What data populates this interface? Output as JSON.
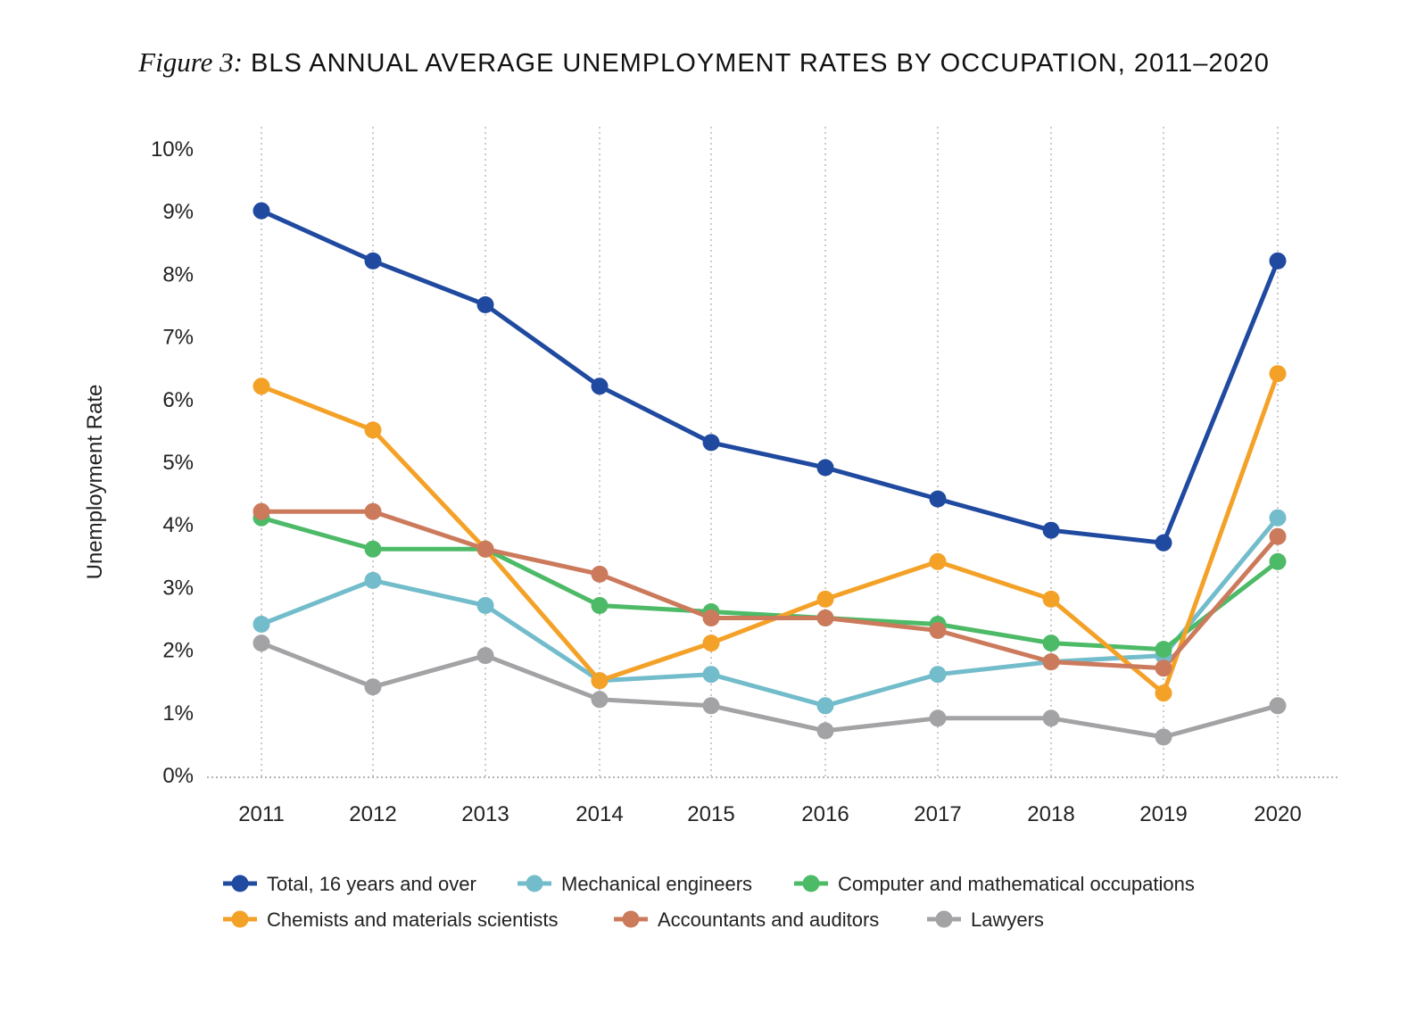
{
  "chart_data": {
    "type": "line",
    "figure_label": "Figure 3:",
    "title": "BLS ANNUAL AVERAGE UNEMPLOYMENT RATES BY OCCUPATION, 2011–2020",
    "xlabel": "",
    "ylabel": "Unemployment Rate",
    "x": [
      "2011",
      "2012",
      "2013",
      "2014",
      "2015",
      "2016",
      "2017",
      "2018",
      "2019",
      "2020"
    ],
    "ylim": [
      0,
      10
    ],
    "yticks": [
      "0%",
      "1%",
      "2%",
      "3%",
      "4%",
      "5%",
      "6%",
      "7%",
      "8%",
      "9%",
      "10%"
    ],
    "grid": "vertical dotted",
    "legend_position": "bottom",
    "series": [
      {
        "name": "Total, 16 years and over",
        "color": "#1f4aa0",
        "values": [
          9.0,
          8.2,
          7.5,
          6.2,
          5.3,
          4.9,
          4.4,
          3.9,
          3.7,
          8.2
        ]
      },
      {
        "name": "Mechanical engineers",
        "color": "#72bccb",
        "values": [
          2.4,
          3.1,
          2.7,
          1.5,
          1.6,
          1.1,
          1.6,
          1.8,
          1.9,
          4.1
        ]
      },
      {
        "name": "Computer and mathematical occupations",
        "color": "#4dba67",
        "values": [
          4.1,
          3.6,
          3.6,
          2.7,
          2.6,
          2.5,
          2.4,
          2.1,
          2.0,
          3.4
        ]
      },
      {
        "name": "Chemists and materials scientists",
        "color": "#f4a128",
        "values": [
          6.2,
          5.5,
          3.6,
          1.5,
          2.1,
          2.8,
          3.4,
          2.8,
          1.3,
          6.4
        ]
      },
      {
        "name": "Accountants and auditors",
        "color": "#cc7a5c",
        "values": [
          4.2,
          4.2,
          3.6,
          3.2,
          2.5,
          2.5,
          2.3,
          1.8,
          1.7,
          3.8
        ]
      },
      {
        "name": "Lawyers",
        "color": "#a3a3a6",
        "values": [
          2.1,
          1.4,
          1.9,
          1.2,
          1.1,
          0.7,
          0.9,
          0.9,
          0.6,
          1.1
        ]
      }
    ]
  }
}
